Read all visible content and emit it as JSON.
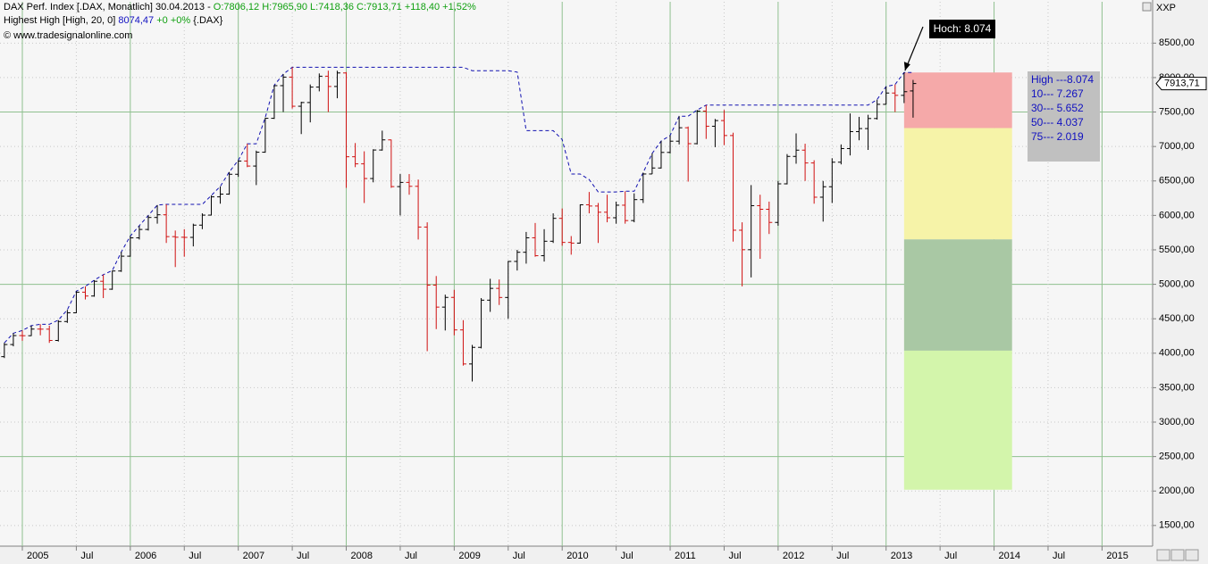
{
  "chart_data": {
    "type": "ohlc",
    "header": {
      "line1_name": "DAX Perf. Index [.DAX, Monatlich] 30.04.2013 - ",
      "line1_values": "O:7806,12 H:7965,90 L:7418,36 C:7913,71 +118,40 +1,52%",
      "line2_name": "Highest High [High, 20, 0] ",
      "line2_value": "8074,47",
      "line2_change": "+0 +0%",
      "line2_symbol": "{.DAX}",
      "line3": "© www.tradesignalonline.com",
      "corner": "XXP"
    },
    "categories": [
      null,
      null,
      "2005",
      null,
      null,
      null,
      null,
      null,
      "Jul",
      null,
      null,
      null,
      null,
      null,
      "2006",
      null,
      null,
      null,
      null,
      null,
      "Jul",
      null,
      null,
      null,
      null,
      null,
      "2007",
      null,
      null,
      null,
      null,
      null,
      "Jul",
      null,
      null,
      null,
      null,
      null,
      "2008",
      null,
      null,
      null,
      null,
      null,
      "Jul",
      null,
      null,
      null,
      null,
      null,
      "2009",
      null,
      null,
      null,
      null,
      null,
      "Jul",
      null,
      null,
      null,
      null,
      null,
      "2010",
      null,
      null,
      null,
      null,
      null,
      "Jul",
      null,
      null,
      null,
      null,
      null,
      "2011",
      null,
      null,
      null,
      null,
      null,
      "Jul",
      null,
      null,
      null,
      null,
      null,
      "2012",
      null,
      null,
      null,
      null,
      null,
      "Jul",
      null,
      null,
      null,
      null,
      null,
      "2013",
      null,
      null,
      null,
      null,
      null,
      "Jul",
      null,
      null,
      null,
      null,
      null,
      "2014",
      null,
      null,
      null,
      null,
      null,
      "Jul",
      null,
      null,
      null,
      null,
      null,
      "2015",
      null,
      null,
      null,
      null,
      null
    ],
    "open": [
      3950,
      4126,
      4256,
      4254,
      4350,
      4349,
      4185,
      4460,
      4586,
      4886,
      4830,
      5044,
      4929,
      5193,
      5408,
      5674,
      5796,
      5970,
      6009,
      5692,
      5683,
      5681,
      5859,
      6004,
      6269,
      6309,
      6597,
      6789,
      6716,
      6917,
      7409,
      7883,
      8007,
      7584,
      7638,
      7862,
      8020,
      7871,
      8067,
      6851,
      6748,
      6535,
      6949,
      7096,
      6418,
      6479,
      6422,
      5831,
      4988,
      4669,
      4810,
      4338,
      3844,
      4085,
      4770,
      4941,
      4809,
      5332,
      5465,
      5675,
      5415,
      5625,
      5957,
      5608,
      5598,
      6154,
      6136,
      6046,
      5966,
      6148,
      5925,
      6229,
      6601,
      6688,
      6914,
      7077,
      7272,
      7041,
      7514,
      7294,
      7376,
      7159,
      5785,
      5502,
      6141,
      6089,
      5898,
      6458,
      6856,
      6947,
      6761,
      6264,
      6416,
      6772,
      6970,
      7216,
      7260,
      7406,
      7612,
      7776,
      7742,
      7806.12,
      null,
      null,
      null,
      null,
      null,
      null,
      null,
      null,
      null,
      null,
      null,
      null,
      null,
      null,
      null,
      null,
      null,
      null,
      null,
      null,
      null,
      null,
      null,
      null,
      null,
      null
    ],
    "high": [
      4150,
      4290,
      4330,
      4400,
      4420,
      4400,
      4480,
      4630,
      4900,
      4970,
      5060,
      5140,
      5200,
      5470,
      5700,
      5850,
      6000,
      6150,
      6160,
      5780,
      5800,
      5880,
      6030,
      6290,
      6420,
      6630,
      6800,
      7040,
      6940,
      7420,
      7890,
      8050,
      8150,
      7650,
      7900,
      8060,
      8100,
      8100,
      8080,
      7050,
      6930,
      6960,
      7230,
      7100,
      6600,
      6600,
      6520,
      5900,
      5120,
      4850,
      4920,
      4480,
      4120,
      4800,
      5080,
      5070,
      5340,
      5500,
      5760,
      5890,
      5800,
      6030,
      6100,
      5700,
      6160,
      6340,
      6180,
      6300,
      6200,
      6350,
      6320,
      6620,
      6900,
      7080,
      7160,
      7440,
      7290,
      7530,
      7600,
      7400,
      7530,
      7200,
      5900,
      6440,
      6300,
      6200,
      6500,
      6890,
      7190,
      7040,
      6800,
      6500,
      6830,
      7030,
      7480,
      7430,
      7460,
      7680,
      7870,
      7900,
      8074.47,
      7965.9,
      null,
      null,
      null,
      null,
      null,
      null,
      null,
      null,
      null,
      null,
      null,
      null,
      null,
      null,
      null,
      null,
      null,
      null,
      null,
      null,
      null,
      null,
      null,
      null,
      null,
      null
    ],
    "low": [
      3930,
      4100,
      4180,
      4250,
      4260,
      4150,
      4170,
      4440,
      4580,
      4780,
      4820,
      4800,
      4920,
      5180,
      5400,
      5650,
      5780,
      5880,
      5600,
      5250,
      5400,
      5550,
      5800,
      6000,
      6170,
      6300,
      6560,
      6700,
      6440,
      6910,
      7400,
      7500,
      7550,
      7180,
      7350,
      7800,
      7500,
      7700,
      6400,
      6700,
      6180,
      6480,
      6940,
      6400,
      6000,
      6300,
      5650,
      4030,
      4350,
      4330,
      4260,
      3820,
      3590,
      4070,
      4600,
      4700,
      4500,
      5200,
      5300,
      5400,
      5330,
      5600,
      5560,
      5430,
      5590,
      6030,
      5600,
      5900,
      5880,
      5880,
      5900,
      6180,
      6600,
      6680,
      6900,
      7030,
      6490,
      7030,
      7110,
      6990,
      7020,
      5620,
      4970,
      5100,
      5370,
      5730,
      5850,
      6450,
      6750,
      6500,
      6170,
      5910,
      6180,
      6740,
      6870,
      7090,
      6950,
      7390,
      7610,
      7500,
      7630,
      7418.36,
      null,
      null,
      null,
      null,
      null,
      null,
      null,
      null,
      null,
      null,
      null,
      null,
      null,
      null,
      null,
      null,
      null,
      null,
      null,
      null,
      null,
      null,
      null,
      null,
      null,
      null
    ],
    "close": [
      4126,
      4256,
      4254,
      4350,
      4349,
      4185,
      4460,
      4586,
      4886,
      4830,
      5044,
      4929,
      5193,
      5408,
      5674,
      5796,
      5970,
      6009,
      5692,
      5683,
      5681,
      5859,
      6004,
      6269,
      6309,
      6597,
      6789,
      6716,
      6917,
      7409,
      7883,
      8007,
      7584,
      7638,
      7862,
      8020,
      7871,
      8067,
      6851,
      6748,
      6535,
      6949,
      7096,
      6418,
      6479,
      6422,
      5831,
      4988,
      4669,
      4810,
      4338,
      3844,
      4085,
      4770,
      4941,
      4809,
      5332,
      5465,
      5675,
      5415,
      5625,
      5957,
      5608,
      5598,
      6154,
      6136,
      6046,
      5966,
      6148,
      5925,
      6229,
      6601,
      6688,
      6914,
      7077,
      7272,
      7041,
      7514,
      7294,
      7376,
      7159,
      5785,
      5502,
      6141,
      6089,
      5898,
      6458,
      6856,
      6947,
      6761,
      6264,
      6416,
      6772,
      6970,
      7216,
      7260,
      7406,
      7612,
      7776,
      7742,
      7795,
      7913.71,
      null,
      null,
      null,
      null,
      null,
      null,
      null,
      null,
      null,
      null,
      null,
      null,
      null,
      null,
      null,
      null,
      null,
      null,
      null,
      null,
      null,
      null,
      null,
      null,
      null,
      null
    ],
    "up_color": "#000000",
    "down_color": "#d01010",
    "highest_high": {
      "color": "#1010b0",
      "values": [
        4150,
        4290,
        4330,
        4400,
        4420,
        4420,
        4480,
        4630,
        4900,
        4970,
        5060,
        5140,
        5200,
        5470,
        5700,
        5850,
        6000,
        6150,
        6160,
        6160,
        6160,
        6160,
        6160,
        6290,
        6420,
        6630,
        6800,
        7040,
        7040,
        7420,
        7890,
        8050,
        8150,
        8150,
        8150,
        8150,
        8150,
        8150,
        8150,
        8150,
        8150,
        8150,
        8150,
        8150,
        8150,
        8150,
        8150,
        8150,
        8150,
        8150,
        8150,
        8150,
        8100,
        8100,
        8100,
        8100,
        8100,
        8080,
        7230,
        7230,
        7230,
        7230,
        7100,
        6600,
        6600,
        6520,
        6340,
        6340,
        6340,
        6350,
        6350,
        6620,
        6900,
        7080,
        7160,
        7440,
        7440,
        7530,
        7600,
        7600,
        7600,
        7600,
        7600,
        7600,
        7600,
        7600,
        7600,
        7600,
        7600,
        7600,
        7600,
        7600,
        7600,
        7600,
        7600,
        7600,
        7600,
        7680,
        7870,
        7900,
        8074.47,
        8074.47,
        null,
        null,
        null,
        null,
        null,
        null,
        null,
        null,
        null,
        null,
        null,
        null,
        null,
        null,
        null,
        null,
        null,
        null,
        null,
        null,
        null,
        null,
        null,
        null,
        null,
        null
      ]
    },
    "last_price": {
      "value": 7913.71,
      "label": "7913,71"
    },
    "zones": {
      "levels": [
        {
          "value": 8074,
          "label": "High ---8.074"
        },
        {
          "value": 7267,
          "label": "10--- 7.267"
        },
        {
          "value": 5652,
          "label": "30--- 5.652"
        },
        {
          "value": 4037,
          "label": "50--- 4.037"
        },
        {
          "value": 2019,
          "label": "75--- 2.019"
        }
      ],
      "colors": [
        "#f5a9a9",
        "#f6f3a8",
        "#a9c8a4",
        "#d3f5ab"
      ]
    },
    "annotation": "Hoch: 8.074",
    "ylim": [
      1200,
      9100
    ],
    "yticks": [
      {
        "value": 1500,
        "label": "1500,00"
      },
      {
        "value": 2000,
        "label": "2000,00"
      },
      {
        "value": 2500,
        "label": "2500,00"
      },
      {
        "value": 3000,
        "label": "3000,00"
      },
      {
        "value": 3500,
        "label": "3500,00"
      },
      {
        "value": 4000,
        "label": "4000,00"
      },
      {
        "value": 4500,
        "label": "4500,00"
      },
      {
        "value": 5000,
        "label": "5000,00"
      },
      {
        "value": 5500,
        "label": "5500,00"
      },
      {
        "value": 6000,
        "label": "6000,00"
      },
      {
        "value": 6500,
        "label": "6500,00"
      },
      {
        "value": 7000,
        "label": "7000,00"
      },
      {
        "value": 7500,
        "label": "7500,00"
      },
      {
        "value": 8000,
        "label": "8000,00"
      },
      {
        "value": 8500,
        "label": "8500,00"
      }
    ],
    "grid": true
  }
}
